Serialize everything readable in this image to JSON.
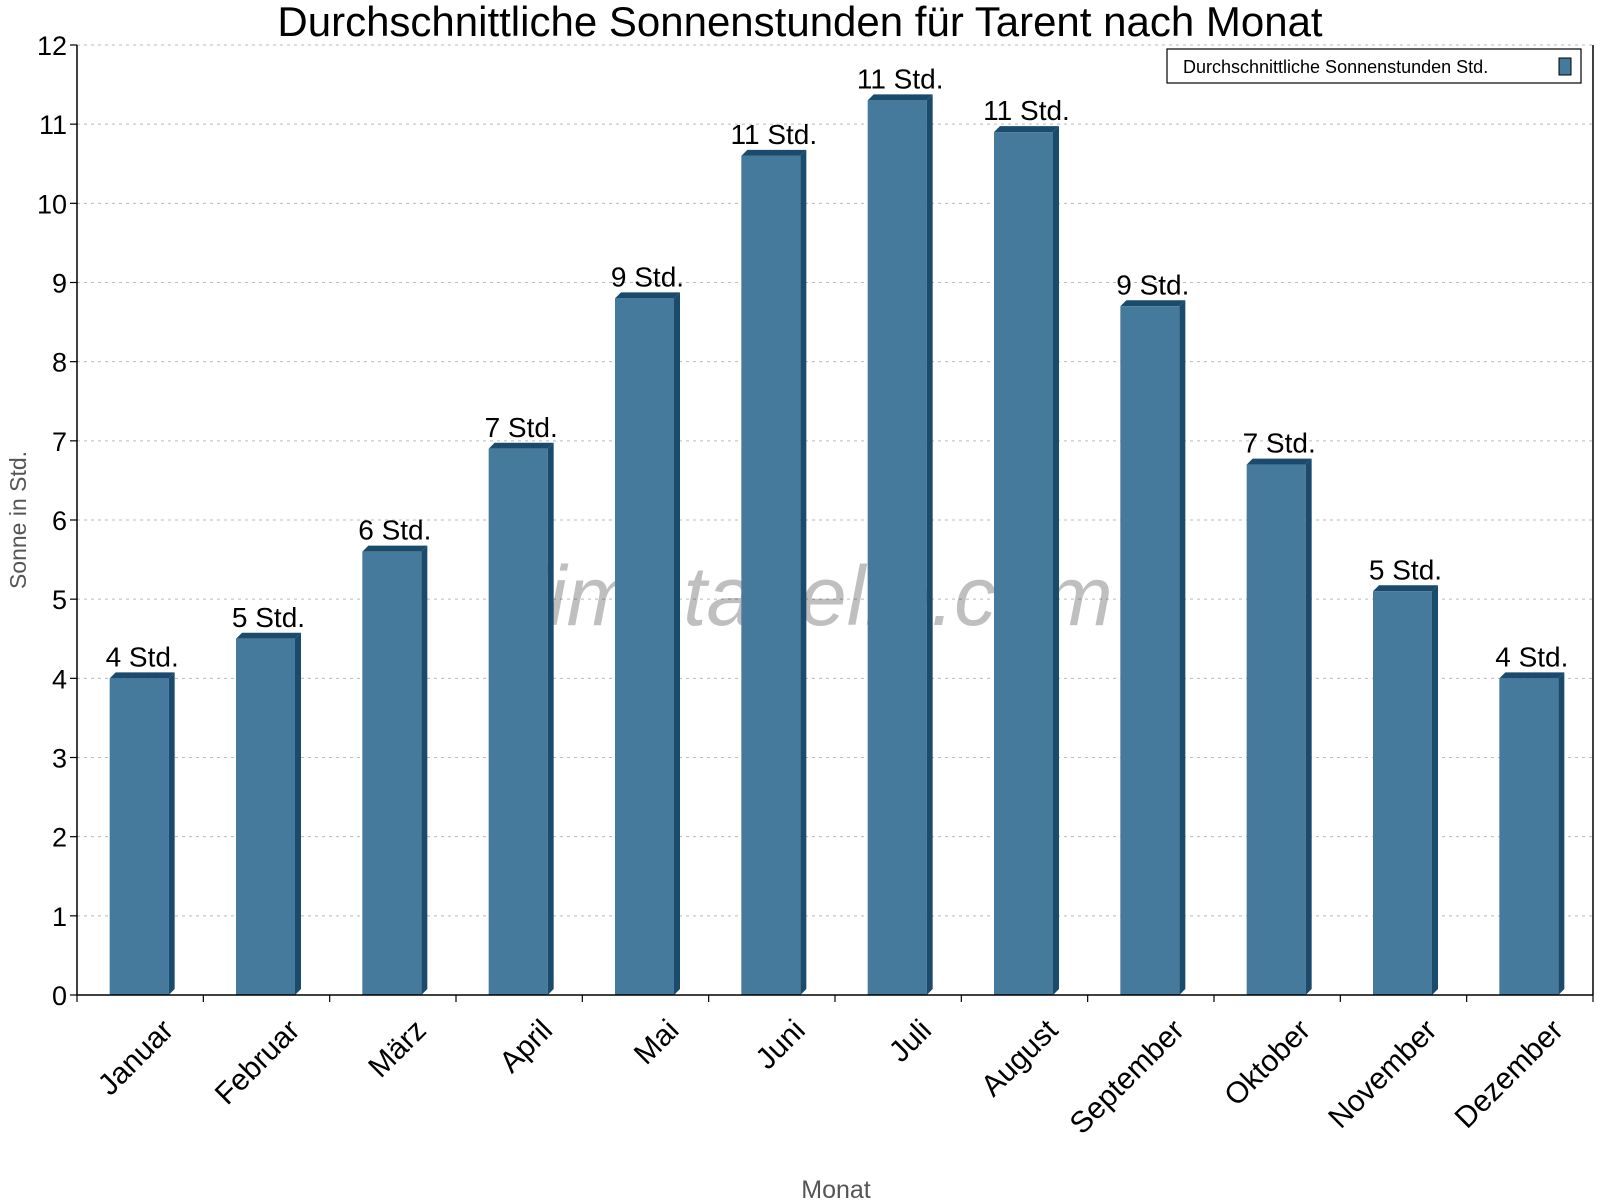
{
  "chart_data": {
    "type": "bar",
    "title": "Durchschnittliche Sonnenstunden für Tarent nach Monat",
    "xlabel": "Monat",
    "ylabel": "Sonne in Std.",
    "ylim": [
      0,
      12
    ],
    "yticks": [
      0,
      1,
      2,
      3,
      4,
      5,
      6,
      7,
      8,
      9,
      10,
      11,
      12
    ],
    "grid": true,
    "legend_position": "top-right",
    "categories": [
      "Januar",
      "Februar",
      "März",
      "April",
      "Mai",
      "Juni",
      "Juli",
      "August",
      "September",
      "Oktober",
      "November",
      "Dezember"
    ],
    "series": [
      {
        "name": "Durchschnittliche Sonnenstunden Std.",
        "values": [
          4.0,
          4.5,
          5.6,
          6.9,
          8.8,
          10.6,
          11.3,
          10.9,
          8.7,
          6.7,
          5.1,
          4.0
        ],
        "data_labels": [
          "4 Std.",
          "5 Std.",
          "6 Std.",
          "7 Std.",
          "9 Std.",
          "11 Std.",
          "11 Std.",
          "11 Std.",
          "9 Std.",
          "7 Std.",
          "5 Std.",
          "4 Std."
        ],
        "color": "#467a9c",
        "side_color": "#1a4a6c"
      }
    ],
    "watermark": "klimatabelle.com"
  }
}
